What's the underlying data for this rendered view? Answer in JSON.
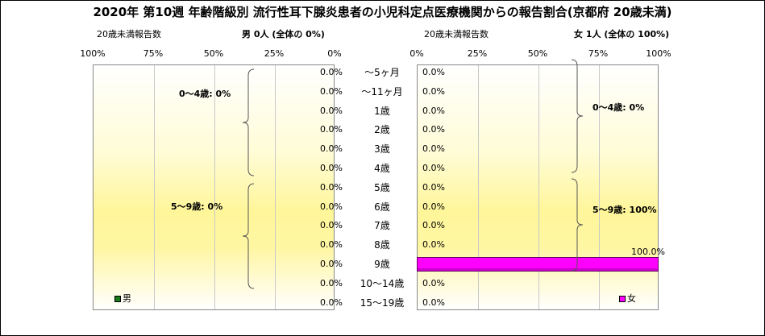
{
  "title": "2020年 第10週 年齢階級別 流行性耳下腺炎患者の小児科定点医療機関からの報告割合(京都府 20歳未満)",
  "left_header": {
    "axis_title": "20歳未満報告数",
    "summary": "男  0人 (全体の  0%)"
  },
  "right_header": {
    "axis_title": "20歳未満報告数",
    "summary": "女  1人 (全体の  100%)"
  },
  "colors": {
    "male": "#1a7a1a",
    "female": "#ff00ff",
    "female_border": "#660066"
  },
  "chart_data": [
    {
      "type": "bar",
      "orientation": "horizontal",
      "side": "left",
      "categories": [
        "～5ヶ月",
        "～11ヶ月",
        "1歳",
        "2歳",
        "3歳",
        "4歳",
        "5歳",
        "6歳",
        "7歳",
        "8歳",
        "9歳",
        "10～14歳",
        "15～19歳"
      ],
      "series": [
        {
          "name": "男",
          "values": [
            0,
            0,
            0,
            0,
            0,
            0,
            0,
            0,
            0,
            0,
            0,
            0,
            0
          ]
        }
      ],
      "value_labels": [
        "0.0%",
        "0.0%",
        "0.0%",
        "0.0%",
        "0.0%",
        "0.0%",
        "0.0%",
        "0.0%",
        "0.0%",
        "0.0%",
        "0.0%",
        "0.0%",
        "0.0%"
      ],
      "xlim": [
        100,
        0
      ],
      "x_ticks": [
        "100%",
        "75%",
        "50%",
        "25%",
        "0%"
      ],
      "groups": [
        {
          "label": "0～4歳: 0%"
        },
        {
          "label": "5～9歳: 0%"
        }
      ],
      "legend": "bottom-left"
    },
    {
      "type": "bar",
      "orientation": "horizontal",
      "side": "right",
      "categories": [
        "～5ヶ月",
        "～11ヶ月",
        "1歳",
        "2歳",
        "3歳",
        "4歳",
        "5歳",
        "6歳",
        "7歳",
        "8歳",
        "9歳",
        "10～14歳",
        "15～19歳"
      ],
      "series": [
        {
          "name": "女",
          "values": [
            0,
            0,
            0,
            0,
            0,
            0,
            0,
            0,
            0,
            0,
            100,
            0,
            0
          ]
        }
      ],
      "value_labels": [
        "0.0%",
        "0.0%",
        "0.0%",
        "0.0%",
        "0.0%",
        "0.0%",
        "0.0%",
        "0.0%",
        "0.0%",
        "0.0%",
        "100.0%",
        "0.0%",
        "0.0%"
      ],
      "xlim": [
        0,
        100
      ],
      "x_ticks": [
        "0%",
        "25%",
        "50%",
        "75%",
        "100%"
      ],
      "groups": [
        {
          "label": "0～4歳: 0%"
        },
        {
          "label": "5～9歳: 100%"
        }
      ],
      "legend": "bottom-right"
    }
  ]
}
